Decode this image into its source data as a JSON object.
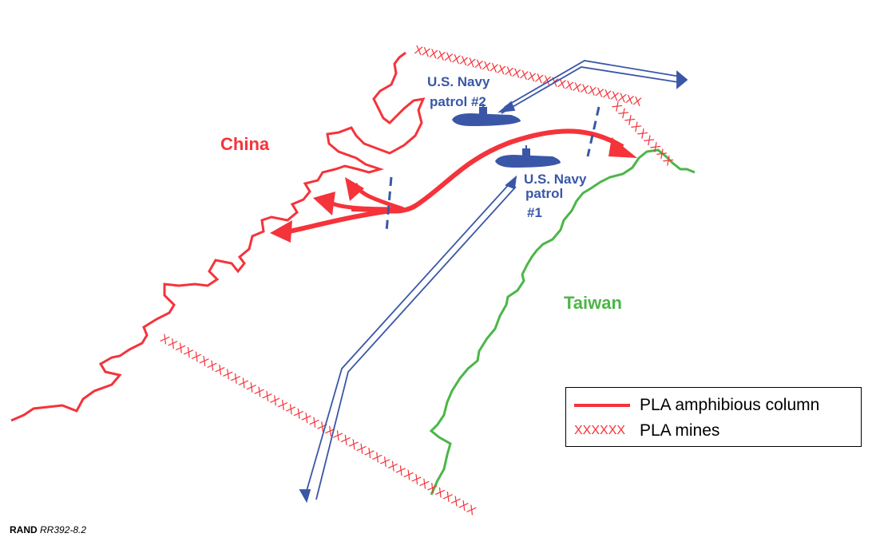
{
  "labels": {
    "china": "China",
    "taiwan": "Taiwan",
    "patrol2": [
      "U.S. Navy",
      "patrol #2"
    ],
    "patrol1": [
      "U.S. Navy",
      "patrol",
      "#1"
    ]
  },
  "legend": {
    "amphibious_label": "PLA amphibious column",
    "mines_symbol": "XXXXXX",
    "mines_label": "PLA mines"
  },
  "credit": {
    "org": "RAND",
    "report": "RR392-8.2"
  },
  "colors": {
    "china": "#f5333a",
    "taiwan": "#4cb648",
    "navy": "#3a57a7",
    "mines": "#f5333a"
  },
  "icons": [
    "submarine-icon",
    "arrow-icon",
    "mine-marker-icon"
  ]
}
